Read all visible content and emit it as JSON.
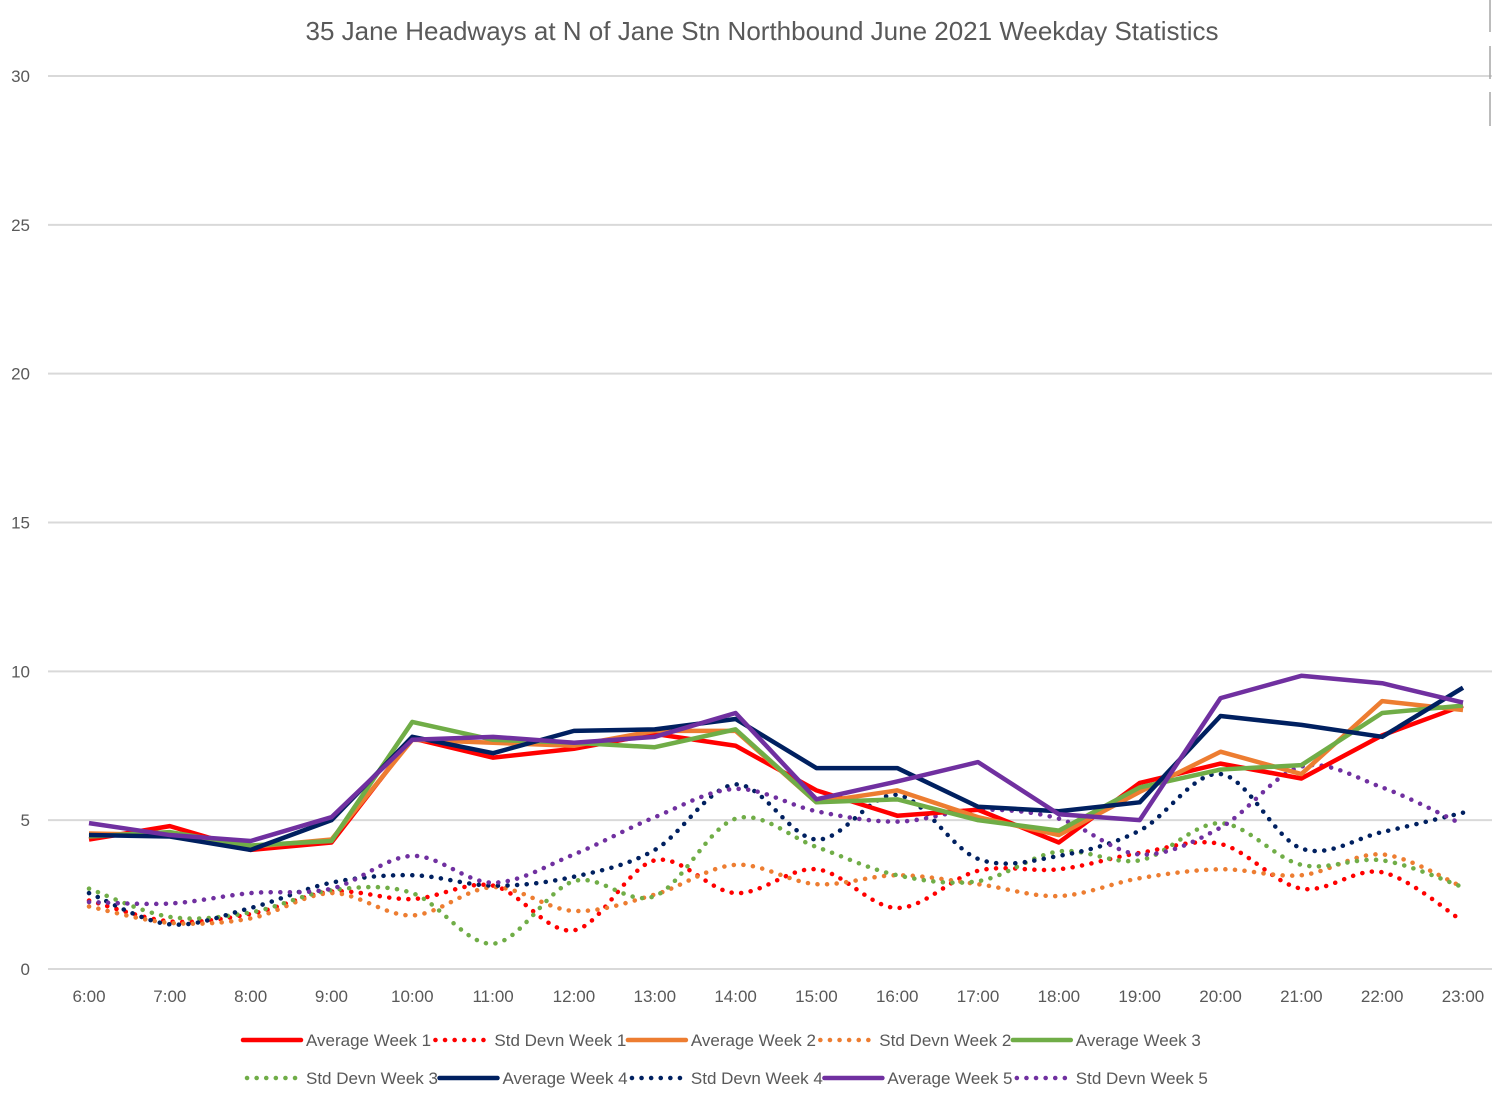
{
  "chart_data": {
    "type": "line",
    "title": "35 Jane Headways at N of Jane Stn Northbound June 2021 Weekday Statistics",
    "xlabel": "",
    "ylabel": "",
    "ylim": [
      0,
      30
    ],
    "yticks": [
      0,
      5,
      10,
      15,
      20,
      25,
      30
    ],
    "grid": true,
    "legend_position": "bottom",
    "categories": [
      "6:00",
      "7:00",
      "8:00",
      "9:00",
      "10:00",
      "11:00",
      "12:00",
      "13:00",
      "14:00",
      "15:00",
      "16:00",
      "17:00",
      "18:00",
      "19:00",
      "20:00",
      "21:00",
      "22:00",
      "23:00"
    ],
    "series": [
      {
        "name": "Average Week 1",
        "color": "#ff0000",
        "style": "solid",
        "values": [
          4.35,
          4.8,
          4.0,
          4.25,
          7.75,
          7.1,
          7.4,
          7.9,
          7.5,
          6.0,
          5.15,
          5.35,
          4.25,
          6.25,
          6.9,
          6.4,
          7.85,
          8.85
        ]
      },
      {
        "name": "Std Devn Week 1",
        "color": "#ff0000",
        "style": "dotted",
        "values": [
          2.3,
          1.6,
          1.85,
          2.6,
          2.35,
          2.8,
          1.3,
          3.65,
          2.55,
          3.35,
          2.05,
          3.3,
          3.35,
          3.9,
          4.2,
          2.7,
          3.25,
          1.6
        ]
      },
      {
        "name": "Average Week 2",
        "color": "#ed7d31",
        "style": "solid",
        "values": [
          4.55,
          4.5,
          4.1,
          4.35,
          7.7,
          7.6,
          7.5,
          8.0,
          8.0,
          5.6,
          6.0,
          5.1,
          4.5,
          5.95,
          7.3,
          6.55,
          9.0,
          8.7
        ]
      },
      {
        "name": "Std Devn Week 2",
        "color": "#ed7d31",
        "style": "dotted",
        "values": [
          2.1,
          1.55,
          1.7,
          2.55,
          1.8,
          2.75,
          1.95,
          2.5,
          3.5,
          2.85,
          3.15,
          2.85,
          2.45,
          3.05,
          3.35,
          3.15,
          3.85,
          2.75
        ]
      },
      {
        "name": "Average Week 3",
        "color": "#70ad47",
        "style": "solid",
        "values": [
          4.45,
          4.6,
          4.15,
          4.3,
          8.3,
          7.7,
          7.6,
          7.45,
          8.05,
          5.6,
          5.7,
          5.0,
          4.65,
          6.1,
          6.7,
          6.85,
          8.6,
          8.85
        ]
      },
      {
        "name": "Std Devn Week 3",
        "color": "#70ad47",
        "style": "dotted",
        "values": [
          2.7,
          1.75,
          1.9,
          2.65,
          2.55,
          0.85,
          2.95,
          2.45,
          5.05,
          4.1,
          3.15,
          2.95,
          3.95,
          3.65,
          4.9,
          3.5,
          3.65,
          2.75
        ]
      },
      {
        "name": "Average Week 4",
        "color": "#002060",
        "style": "solid",
        "values": [
          4.5,
          4.45,
          4.0,
          5.0,
          7.8,
          7.25,
          8.0,
          8.05,
          8.4,
          6.75,
          6.75,
          5.45,
          5.3,
          5.6,
          8.5,
          8.2,
          7.8,
          9.45
        ]
      },
      {
        "name": "Std Devn Week 4",
        "color": "#002060",
        "style": "dotted",
        "values": [
          2.55,
          1.5,
          2.05,
          2.9,
          3.15,
          2.8,
          3.1,
          4.0,
          6.2,
          4.35,
          5.85,
          3.7,
          3.8,
          4.65,
          6.55,
          4.05,
          4.6,
          5.25
        ]
      },
      {
        "name": "Average Week 5",
        "color": "#7030a0",
        "style": "solid",
        "values": [
          4.9,
          4.5,
          4.3,
          5.1,
          7.7,
          7.8,
          7.6,
          7.8,
          8.6,
          5.7,
          6.3,
          6.95,
          5.2,
          5.0,
          9.1,
          9.85,
          9.6,
          8.95
        ]
      },
      {
        "name": "Std Devn Week 5",
        "color": "#7030a0",
        "style": "dotted",
        "values": [
          2.25,
          2.2,
          2.55,
          2.7,
          3.8,
          2.9,
          3.85,
          5.1,
          6.05,
          5.3,
          4.95,
          5.35,
          5.05,
          3.85,
          4.75,
          6.8,
          6.1,
          4.85
        ]
      }
    ]
  }
}
